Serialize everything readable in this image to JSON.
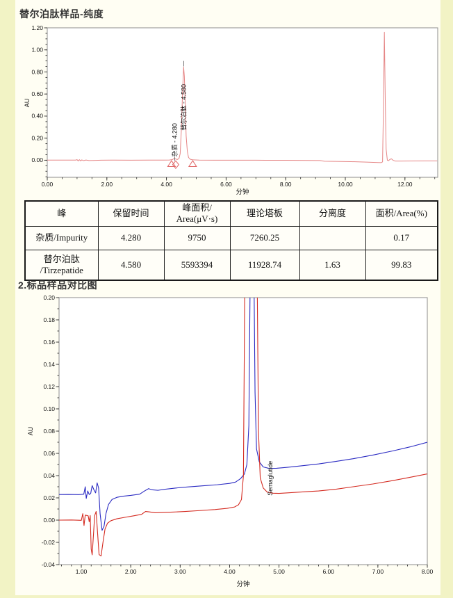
{
  "page": {
    "bg_color": "#f2f3c5",
    "panel_color": "#fffef3",
    "corner_fragment": "11"
  },
  "section1": {
    "title": "替尔泊肽样品-纯度"
  },
  "section2": {
    "title": "2.标品样品对比图"
  },
  "table": {
    "headers": [
      [
        "峰"
      ],
      [
        "保留时间"
      ],
      [
        "峰面积/",
        "Area(μV·s)"
      ],
      [
        "理论塔板"
      ],
      [
        "分离度"
      ],
      [
        "面积/Area(%)"
      ]
    ],
    "rows": [
      [
        [
          "杂质/Impurity"
        ],
        [
          "4.280"
        ],
        [
          "9750"
        ],
        [
          "7260.25"
        ],
        [
          ""
        ],
        [
          "0.17"
        ]
      ],
      [
        [
          "替尔泊肽",
          "/Tirzepatide"
        ],
        [
          "4.580"
        ],
        [
          "5593394"
        ],
        [
          "11928.74"
        ],
        [
          "1.63"
        ],
        [
          "99.83"
        ]
      ]
    ]
  },
  "chart_data": [
    {
      "type": "line",
      "title": "替尔泊肽样品-纯度",
      "xlabel": "分钟",
      "ylabel": "AU",
      "xlim": [
        0,
        13.1
      ],
      "ylim": [
        -0.155,
        1.2
      ],
      "grid": false,
      "frame_color": "#8c8c8c",
      "x_ticks": {
        "values": [
          0,
          2,
          4,
          6,
          8,
          10,
          12
        ],
        "labels": [
          "0.00",
          "2.00",
          "4.00",
          "6.00",
          "8.00",
          "10.00",
          "12.00"
        ],
        "minor_step": 0.5
      },
      "y_ticks": {
        "values": [
          0,
          0.2,
          0.4,
          0.6,
          0.8,
          1.0,
          1.2
        ],
        "labels": [
          "0.00",
          "0.20",
          "0.40",
          "0.60",
          "0.80",
          "1.00",
          "1.20"
        ],
        "minor_step": 0.05
      },
      "series": [
        {
          "name": "sample-trace",
          "color": "#e58585",
          "width": 1,
          "points": [
            [
              0,
              0.001
            ],
            [
              0.5,
              0.001
            ],
            [
              0.95,
              0.001
            ],
            [
              1.0,
              0.005
            ],
            [
              1.04,
              -0.007
            ],
            [
              1.08,
              0.005
            ],
            [
              1.12,
              -0.006
            ],
            [
              1.16,
              0.003
            ],
            [
              1.22,
              -0.004
            ],
            [
              1.3,
              0.002
            ],
            [
              1.4,
              -0.003
            ],
            [
              1.55,
              -0.002
            ],
            [
              1.8,
              0.0
            ],
            [
              2.2,
              0.001
            ],
            [
              2.8,
              0.0
            ],
            [
              3.4,
              0.001
            ],
            [
              3.9,
              0.001
            ],
            [
              4.1,
              0.002
            ],
            [
              4.2,
              0.006
            ],
            [
              4.26,
              0.016
            ],
            [
              4.3,
              0.012
            ],
            [
              4.36,
              0.006
            ],
            [
              4.42,
              0.015
            ],
            [
              4.46,
              0.06
            ],
            [
              4.5,
              0.28
            ],
            [
              4.54,
              0.62
            ],
            [
              4.575,
              0.845
            ],
            [
              4.6,
              0.76
            ],
            [
              4.63,
              0.5
            ],
            [
              4.66,
              0.22
            ],
            [
              4.7,
              0.08
            ],
            [
              4.74,
              0.025
            ],
            [
              4.8,
              0.008
            ],
            [
              4.9,
              0.003
            ],
            [
              5.1,
              0.001
            ],
            [
              5.6,
              0.0
            ],
            [
              6.2,
              0.0
            ],
            [
              7.0,
              0.0
            ],
            [
              8.0,
              -0.001
            ],
            [
              8.8,
              -0.002
            ],
            [
              9.15,
              -0.003
            ],
            [
              9.3,
              -0.009
            ],
            [
              9.7,
              -0.011
            ],
            [
              10.2,
              -0.013
            ],
            [
              10.7,
              -0.017
            ],
            [
              11.1,
              -0.021
            ],
            [
              11.2,
              -0.022
            ],
            [
              11.25,
              -0.015
            ],
            [
              11.28,
              0.5
            ],
            [
              11.31,
              1.16
            ],
            [
              11.34,
              0.55
            ],
            [
              11.37,
              0.1
            ],
            [
              11.41,
              0.0
            ],
            [
              11.45,
              -0.004
            ],
            [
              11.5,
              0.008
            ],
            [
              11.55,
              0.012
            ],
            [
              11.6,
              0.0
            ],
            [
              11.68,
              -0.008
            ],
            [
              11.85,
              -0.008
            ],
            [
              12.2,
              -0.007
            ],
            [
              12.7,
              -0.006
            ],
            [
              13.08,
              -0.006
            ]
          ]
        }
      ],
      "peak_labels": [
        {
          "text": "杂质 - 4.280",
          "x": 4.28,
          "y": 0.03
        },
        {
          "text": "替尔泊肽 - 4.580",
          "x": 4.58,
          "y": 0.27
        }
      ],
      "leader_lines": [
        {
          "x": 4.28,
          "y1": -0.005,
          "y2": 0.028
        },
        {
          "x": 4.58,
          "y1": 0.85,
          "y2": 0.9
        }
      ],
      "baseline_markers": [
        {
          "shape": "triangle",
          "x": 4.17,
          "y": -0.045,
          "color": "#e06868"
        },
        {
          "shape": "diamond",
          "x": 4.31,
          "y": -0.04,
          "color": "#e06868"
        },
        {
          "shape": "triangle",
          "x": 4.88,
          "y": -0.045,
          "color": "#e06868"
        }
      ]
    },
    {
      "type": "line",
      "title": "2.标品样品对比图",
      "xlabel": "分钟",
      "ylabel": "AU",
      "xlim": [
        0.55,
        8.0
      ],
      "ylim": [
        -0.04,
        0.2
      ],
      "grid": false,
      "frame_color": "#8c8c8c",
      "x_ticks": {
        "values": [
          1,
          2,
          3,
          4,
          5,
          6,
          7,
          8
        ],
        "labels": [
          "1.00",
          "2.00",
          "3.00",
          "4.00",
          "5.00",
          "6.00",
          "7.00",
          "8.00"
        ],
        "minor_step": 0.2
      },
      "y_ticks": {
        "values": [
          -0.04,
          -0.02,
          0,
          0.02,
          0.04,
          0.06,
          0.08,
          0.1,
          0.12,
          0.14,
          0.16,
          0.18,
          0.2
        ],
        "labels": [
          "-0.04",
          "-0.02",
          "0.00",
          "0.02",
          "0.04",
          "0.06",
          "0.08",
          "0.10",
          "0.12",
          "0.14",
          "0.16",
          "0.18",
          "0.20"
        ],
        "minor_step": 0.01
      },
      "series": [
        {
          "name": "blue-trace",
          "color": "#2a2ac2",
          "width": 1.1,
          "points": [
            [
              0.55,
              0.023
            ],
            [
              0.75,
              0.0231
            ],
            [
              0.95,
              0.0229
            ],
            [
              1.05,
              0.0233
            ],
            [
              1.08,
              0.03
            ],
            [
              1.1,
              0.0195
            ],
            [
              1.13,
              0.0262
            ],
            [
              1.16,
              0.023
            ],
            [
              1.19,
              0.024
            ],
            [
              1.22,
              0.031
            ],
            [
              1.26,
              0.0268
            ],
            [
              1.29,
              0.0245
            ],
            [
              1.32,
              0.0335
            ],
            [
              1.35,
              0.029
            ],
            [
              1.38,
              0.006
            ],
            [
              1.42,
              -0.0092
            ],
            [
              1.46,
              -0.0055
            ],
            [
              1.5,
              0.006
            ],
            [
              1.55,
              0.014
            ],
            [
              1.62,
              0.0185
            ],
            [
              1.72,
              0.0205
            ],
            [
              1.85,
              0.0215
            ],
            [
              2.0,
              0.0222
            ],
            [
              2.18,
              0.0233
            ],
            [
              2.28,
              0.0262
            ],
            [
              2.36,
              0.0283
            ],
            [
              2.44,
              0.0272
            ],
            [
              2.55,
              0.0268
            ],
            [
              2.7,
              0.0278
            ],
            [
              2.9,
              0.0288
            ],
            [
              3.15,
              0.0298
            ],
            [
              3.45,
              0.0308
            ],
            [
              3.75,
              0.0318
            ],
            [
              4.0,
              0.033
            ],
            [
              4.12,
              0.0342
            ],
            [
              4.22,
              0.0372
            ],
            [
              4.3,
              0.0415
            ],
            [
              4.35,
              0.05
            ],
            [
              4.39,
              0.085
            ],
            [
              4.425,
              0.26
            ],
            [
              4.485,
              0.26
            ],
            [
              4.515,
              0.115
            ],
            [
              4.545,
              0.064
            ],
            [
              4.6,
              0.0525
            ],
            [
              4.68,
              0.0478
            ],
            [
              4.8,
              0.0465
            ],
            [
              4.95,
              0.0466
            ],
            [
              5.15,
              0.0474
            ],
            [
              5.45,
              0.0488
            ],
            [
              5.8,
              0.0505
            ],
            [
              6.15,
              0.0528
            ],
            [
              6.5,
              0.0552
            ],
            [
              6.9,
              0.0585
            ],
            [
              7.3,
              0.0622
            ],
            [
              7.65,
              0.0658
            ],
            [
              8.0,
              0.07
            ]
          ]
        },
        {
          "name": "red-trace",
          "color": "#d42a20",
          "width": 1.1,
          "points": [
            [
              0.55,
              0.0
            ],
            [
              0.8,
              0.0001
            ],
            [
              1.0,
              -0.0002
            ],
            [
              1.03,
              0.0058
            ],
            [
              1.055,
              -0.0048
            ],
            [
              1.08,
              0.0045
            ],
            [
              1.11,
              0.0042
            ],
            [
              1.14,
              0.0038
            ],
            [
              1.16,
              -0.0015
            ],
            [
              1.18,
              0.0042
            ],
            [
              1.2,
              -0.026
            ],
            [
              1.22,
              -0.0312
            ],
            [
              1.245,
              -0.014
            ],
            [
              1.27,
              0.004
            ],
            [
              1.3,
              0.0078
            ],
            [
              1.33,
              -0.012
            ],
            [
              1.36,
              -0.031
            ],
            [
              1.4,
              -0.0322
            ],
            [
              1.44,
              -0.0195
            ],
            [
              1.48,
              -0.008
            ],
            [
              1.53,
              -0.0028
            ],
            [
              1.6,
              -0.0005
            ],
            [
              1.72,
              0.0012
            ],
            [
              1.88,
              0.0025
            ],
            [
              2.05,
              0.0038
            ],
            [
              2.22,
              0.0052
            ],
            [
              2.3,
              0.0078
            ],
            [
              2.38,
              0.0074
            ],
            [
              2.5,
              0.0066
            ],
            [
              2.65,
              0.0069
            ],
            [
              2.85,
              0.0072
            ],
            [
              3.1,
              0.0078
            ],
            [
              3.4,
              0.0086
            ],
            [
              3.7,
              0.0095
            ],
            [
              3.95,
              0.0106
            ],
            [
              4.1,
              0.0118
            ],
            [
              4.18,
              0.0138
            ],
            [
              4.24,
              0.0185
            ],
            [
              4.28,
              0.04
            ],
            [
              4.315,
              0.26
            ],
            [
              4.55,
              0.26
            ],
            [
              4.585,
              0.08
            ],
            [
              4.62,
              0.038
            ],
            [
              4.68,
              0.029
            ],
            [
              4.76,
              0.0252
            ],
            [
              4.88,
              0.0242
            ],
            [
              5.0,
              0.024
            ],
            [
              5.2,
              0.0246
            ],
            [
              5.5,
              0.0254
            ],
            [
              5.8,
              0.0262
            ],
            [
              6.15,
              0.0278
            ],
            [
              6.5,
              0.03
            ],
            [
              6.9,
              0.0325
            ],
            [
              7.3,
              0.0355
            ],
            [
              7.65,
              0.0385
            ],
            [
              8.0,
              0.0415
            ]
          ]
        }
      ],
      "peak_labels": [
        {
          "text": "Semaglutide",
          "x": 4.82,
          "y": 0.022
        }
      ],
      "leader_lines": [],
      "baseline_markers": []
    }
  ]
}
